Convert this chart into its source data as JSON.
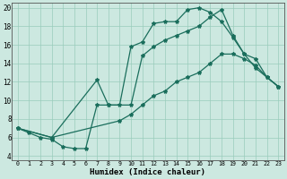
{
  "xlabel": "Humidex (Indice chaleur)",
  "bg_color": "#cce8e0",
  "grid_color": "#99ccbb",
  "line_color": "#1a6e5c",
  "xlim": [
    -0.5,
    23.5
  ],
  "ylim": [
    3.5,
    20.5
  ],
  "xticks": [
    0,
    1,
    2,
    3,
    4,
    5,
    6,
    7,
    8,
    9,
    10,
    11,
    12,
    13,
    14,
    15,
    16,
    17,
    18,
    19,
    20,
    21,
    22,
    23
  ],
  "yticks": [
    4,
    6,
    8,
    10,
    12,
    14,
    16,
    18,
    20
  ],
  "line1_x": [
    0,
    1,
    2,
    3,
    4,
    5,
    6,
    7,
    8,
    9,
    10,
    11,
    12,
    13,
    14,
    15,
    16,
    17,
    18,
    19,
    20,
    21,
    22,
    23
  ],
  "line1_y": [
    7,
    6.5,
    6,
    5.8,
    5.0,
    4.8,
    4.8,
    9.5,
    9.5,
    9.5,
    15.8,
    16.3,
    18.3,
    18.5,
    18.5,
    19.8,
    20.0,
    19.5,
    18.5,
    16.8,
    15.0,
    13.5,
    12.5,
    11.5
  ],
  "line2_x": [
    0,
    3,
    7,
    8,
    10,
    11,
    12,
    13,
    14,
    15,
    16,
    17,
    18,
    19,
    20,
    21,
    22,
    23
  ],
  "line2_y": [
    7,
    6,
    12.2,
    9.5,
    9.5,
    14.8,
    15.8,
    16.5,
    17.0,
    17.5,
    18.0,
    19.0,
    19.8,
    17.0,
    15.0,
    14.5,
    12.5,
    11.5
  ],
  "line3_x": [
    0,
    3,
    9,
    10,
    11,
    12,
    13,
    14,
    15,
    16,
    17,
    18,
    19,
    20,
    21,
    22,
    23
  ],
  "line3_y": [
    7,
    6,
    7.8,
    8.5,
    9.5,
    10.5,
    11.0,
    12.0,
    12.5,
    13.0,
    14.0,
    15.0,
    15.0,
    14.5,
    13.8,
    12.5,
    11.5
  ]
}
